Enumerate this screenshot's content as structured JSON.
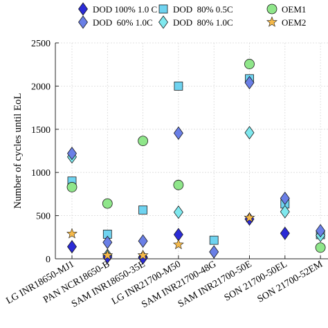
{
  "chart_data": {
    "type": "scatter",
    "ylabel": "Number of cycles until EoL",
    "ylim": [
      0,
      2500
    ],
    "yticks": [
      0,
      500,
      1000,
      1500,
      2000,
      2500
    ],
    "grid": true,
    "legend_position": "top",
    "categories": [
      "LG INR18650-MJ1",
      "PAN NCR18650-B",
      "SAM INR18650-35E",
      "LG INR21700-M50",
      "SAM INR21700-48G",
      "SAM INR21700-50E",
      "SON 21700-50EL",
      "SON 21700-52EM"
    ],
    "series": [
      {
        "name": "DOD 100% 1.0 C",
        "marker": "diamond",
        "color": "#2b2bd6",
        "values": [
          140,
          20,
          10,
          280,
          null,
          460,
          295,
          null
        ]
      },
      {
        "name": "DOD  60% 1.0C",
        "marker": "diamond",
        "color": "#6a7fe6",
        "values": [
          1220,
          190,
          205,
          1455,
          80,
          2040,
          700,
          325
        ]
      },
      {
        "name": "DOD  80% 0.5C",
        "marker": "square",
        "color": "#6fd3f0",
        "values": [
          900,
          285,
          565,
          2000,
          215,
          2085,
          635,
          280
        ]
      },
      {
        "name": "DOD  80% 1.0C",
        "marker": "diamond",
        "color": "#7fe8ee",
        "values": [
          1180,
          40,
          20,
          540,
          null,
          1460,
          545,
          270
        ]
      },
      {
        "name": "OEM1",
        "marker": "circle",
        "color": "#8fe68a",
        "values": [
          830,
          640,
          1365,
          855,
          null,
          2255,
          null,
          130
        ]
      },
      {
        "name": "OEM2",
        "marker": "star",
        "color": "#f5b94a",
        "values": [
          290,
          40,
          40,
          165,
          null,
          475,
          null,
          null
        ]
      }
    ]
  }
}
